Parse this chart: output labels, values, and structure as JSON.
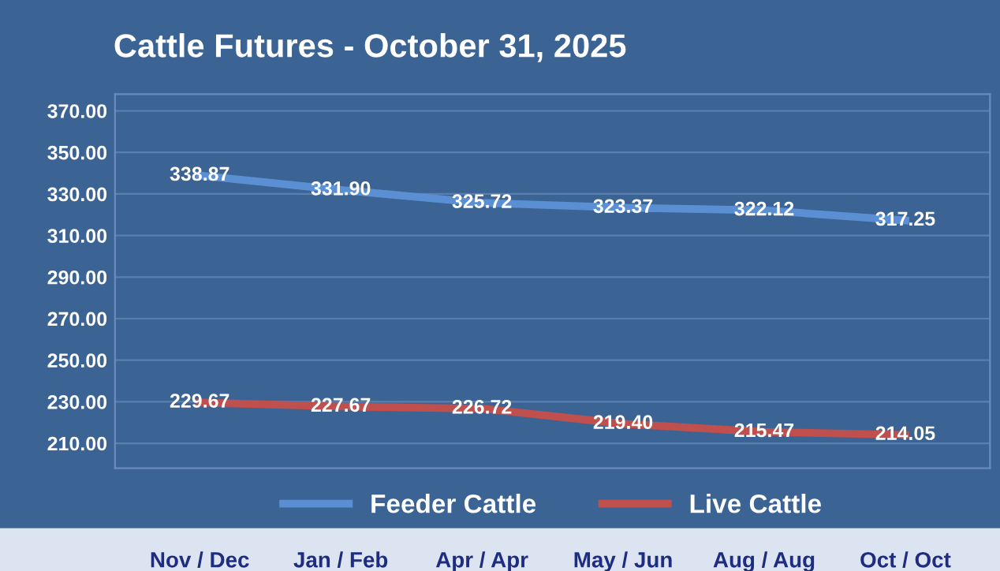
{
  "chart_data": {
    "type": "line",
    "title": "Cattle Futures - October 31, 2025",
    "categories": [
      "Nov / Dec",
      "Jan / Feb",
      "Apr / Apr",
      "May / Jun",
      "Aug / Aug",
      "Oct / Oct"
    ],
    "series": [
      {
        "name": "Feeder Cattle",
        "color": "#5b8fd4",
        "values": [
          338.87,
          331.9,
          325.72,
          323.37,
          322.12,
          317.25
        ],
        "value_labels": [
          "338.87",
          "331.90",
          "325.72",
          "323.37",
          "322.12",
          "317.25"
        ]
      },
      {
        "name": "Live Cattle",
        "color": "#c0504d",
        "values": [
          229.67,
          227.67,
          226.72,
          219.4,
          215.47,
          214.05
        ],
        "value_labels": [
          "229.67",
          "227.67",
          "226.72",
          "219.40",
          "215.47",
          "214.05"
        ]
      }
    ],
    "ylim": [
      198,
      378
    ],
    "yticks": [
      {
        "value": 210,
        "label": "210.00"
      },
      {
        "value": 230,
        "label": "230.00"
      },
      {
        "value": 250,
        "label": "250.00"
      },
      {
        "value": 270,
        "label": "270.00"
      },
      {
        "value": 290,
        "label": "290.00"
      },
      {
        "value": 310,
        "label": "310.00"
      },
      {
        "value": 330,
        "label": "330.00"
      },
      {
        "value": 350,
        "label": "350.00"
      },
      {
        "value": 370,
        "label": "370.00"
      }
    ],
    "grid": "y",
    "legend": "bottom",
    "marker": "none",
    "line_style": "solid"
  }
}
